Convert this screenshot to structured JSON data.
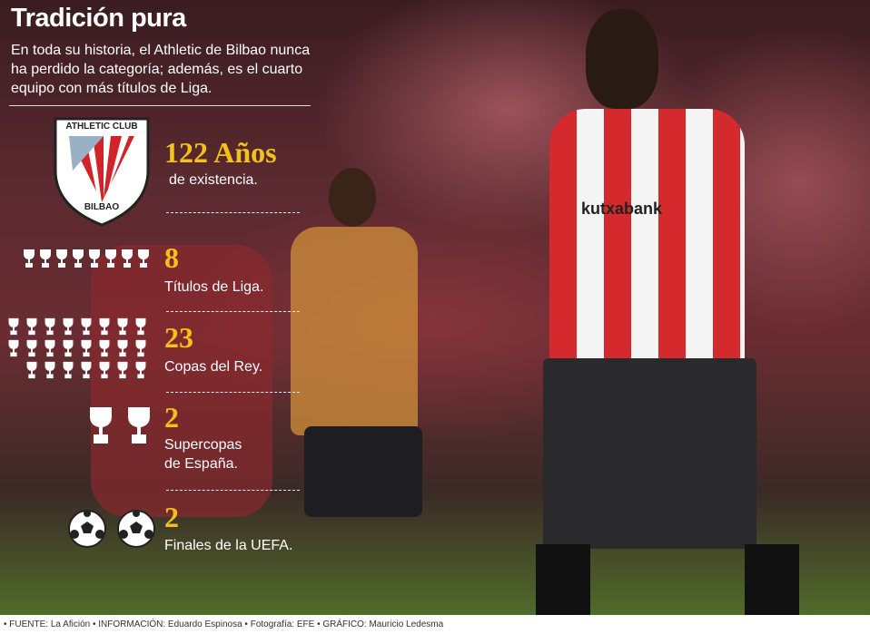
{
  "header": {
    "title": "Tradición pura",
    "intro": "En toda su historia, el Athletic de Bilbao nunca ha perdido la categoría; además, es el cuarto equipo con más títulos de Liga."
  },
  "crest": {
    "top_text": "ATHLETIC CLUB",
    "bottom_text": "BILBAO",
    "colors": {
      "red": "#d2232a",
      "white": "#ffffff"
    }
  },
  "stats": [
    {
      "value": "122 Años",
      "label": "de existencia.",
      "icon": "crest-icon"
    },
    {
      "value": "8",
      "label": "Títulos de Liga.",
      "icon": "trophy-icon",
      "icon_count": 8
    },
    {
      "value": "23",
      "label": "Copas del Rey.",
      "icon": "cup-icon",
      "icon_count": 23
    },
    {
      "value": "2",
      "label_1": "Supercopas",
      "label_2": "de España.",
      "icon": "supercup-icon",
      "icon_count": 2
    },
    {
      "value": "2",
      "label": "Finales de la UEFA.",
      "icon": "soccer-ball-icon",
      "icon_count": 2
    }
  ],
  "photo": {
    "shirt_sponsor": "kutxabank"
  },
  "colors": {
    "accent": "#f2c21a"
  },
  "footer": {
    "credits": "• FUENTE: La Afición • INFORMACIÓN: Eduardo Espinosa • Fotografía: EFE  • GRÁFICO: Mauricio Ledesma"
  }
}
